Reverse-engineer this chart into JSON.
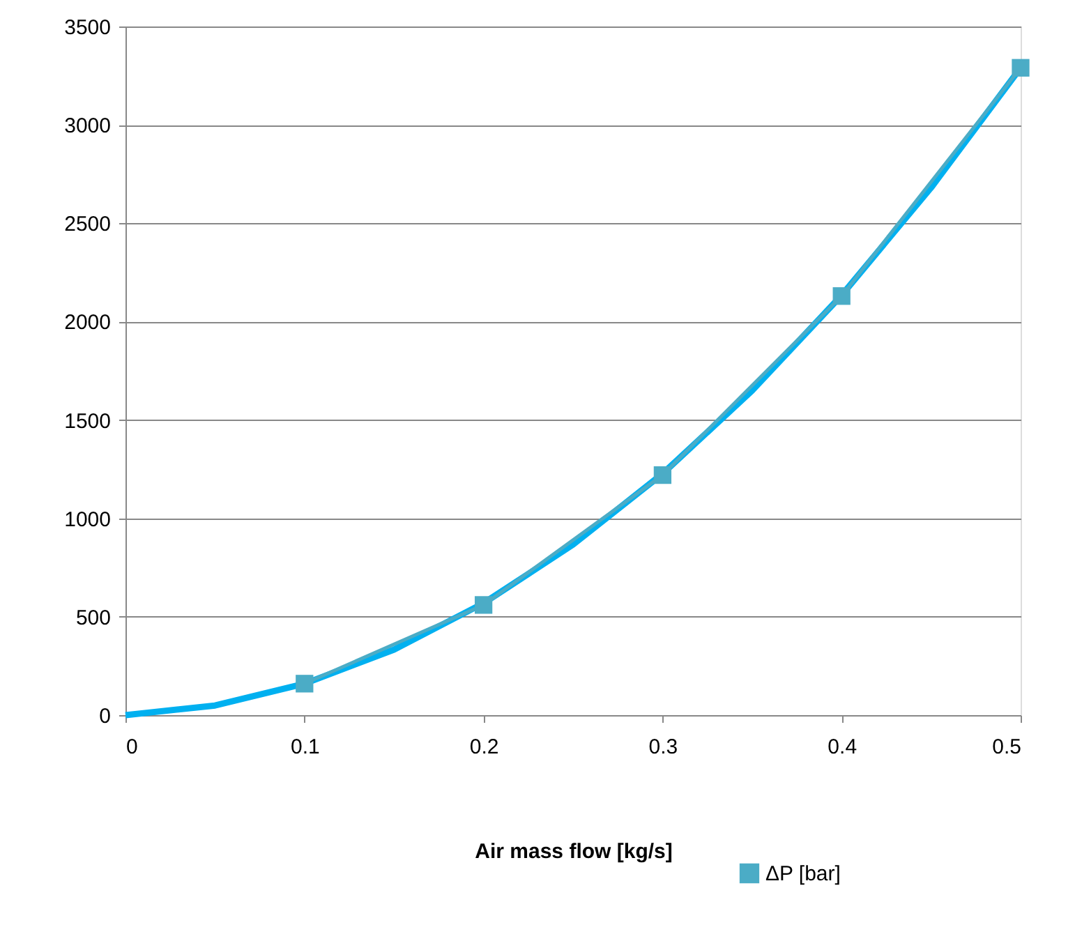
{
  "chart_data": {
    "type": "line",
    "xlabel": "Air mass flow [kg/s]",
    "x": [
      0.1,
      0.2,
      0.3,
      0.4,
      0.5
    ],
    "series": [
      {
        "name": "ΔP [bar]",
        "color": "#4bacc6",
        "values": [
          160,
          560,
          1220,
          2130,
          3290
        ],
        "marker": "square"
      },
      {
        "type": "line",
        "color": "#00b0f0",
        "marker": "none",
        "x": [
          0,
          0.05,
          0.1,
          0.15,
          0.2,
          0.25,
          0.3,
          0.35,
          0.4,
          0.45,
          0.5
        ],
        "values": [
          0,
          49,
          160,
          333,
          569,
          867,
          1227,
          1649,
          2134,
          2681,
          3290
        ]
      }
    ],
    "xlim": [
      0,
      0.5
    ],
    "xticks": [
      0,
      0.1,
      0.2,
      0.3,
      0.4,
      0.5
    ],
    "ylim": [
      0,
      3500
    ],
    "yticks": [
      0,
      500,
      1000,
      1500,
      2000,
      2500,
      3000,
      3500
    ],
    "grid": "y",
    "legend": "bottom right",
    "line_style": "solid"
  }
}
